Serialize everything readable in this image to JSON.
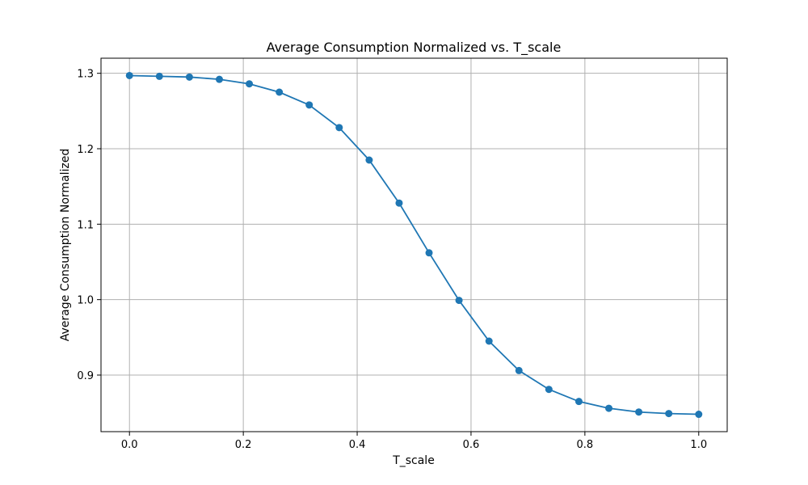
{
  "chart_data": {
    "type": "line",
    "title": "Average Consumption Normalized vs. T_scale",
    "xlabel": "T_scale",
    "ylabel": "Average Consumption Normalized",
    "xlim": [
      -0.05,
      1.05
    ],
    "ylim": [
      0.825,
      1.32
    ],
    "xticks": [
      0.0,
      0.2,
      0.4,
      0.6,
      0.8,
      1.0
    ],
    "xtick_labels": [
      "0.0",
      "0.2",
      "0.4",
      "0.6",
      "0.8",
      "1.0"
    ],
    "yticks": [
      0.9,
      1.0,
      1.1,
      1.2,
      1.3
    ],
    "ytick_labels": [
      "0.9",
      "1.0",
      "1.1",
      "1.2",
      "1.3"
    ],
    "grid": true,
    "color": "#1f77b4",
    "series": [
      {
        "x": [
          0.0,
          0.0526,
          0.1053,
          0.1579,
          0.2105,
          0.2632,
          0.3158,
          0.3684,
          0.4211,
          0.4737,
          0.5263,
          0.5789,
          0.6316,
          0.6842,
          0.7368,
          0.7895,
          0.8421,
          0.8947,
          0.9474,
          1.0
        ],
        "y": [
          1.297,
          1.296,
          1.295,
          1.292,
          1.286,
          1.275,
          1.258,
          1.228,
          1.185,
          1.128,
          1.062,
          0.999,
          0.945,
          0.906,
          0.881,
          0.865,
          0.856,
          0.851,
          0.849,
          0.848
        ]
      }
    ]
  }
}
